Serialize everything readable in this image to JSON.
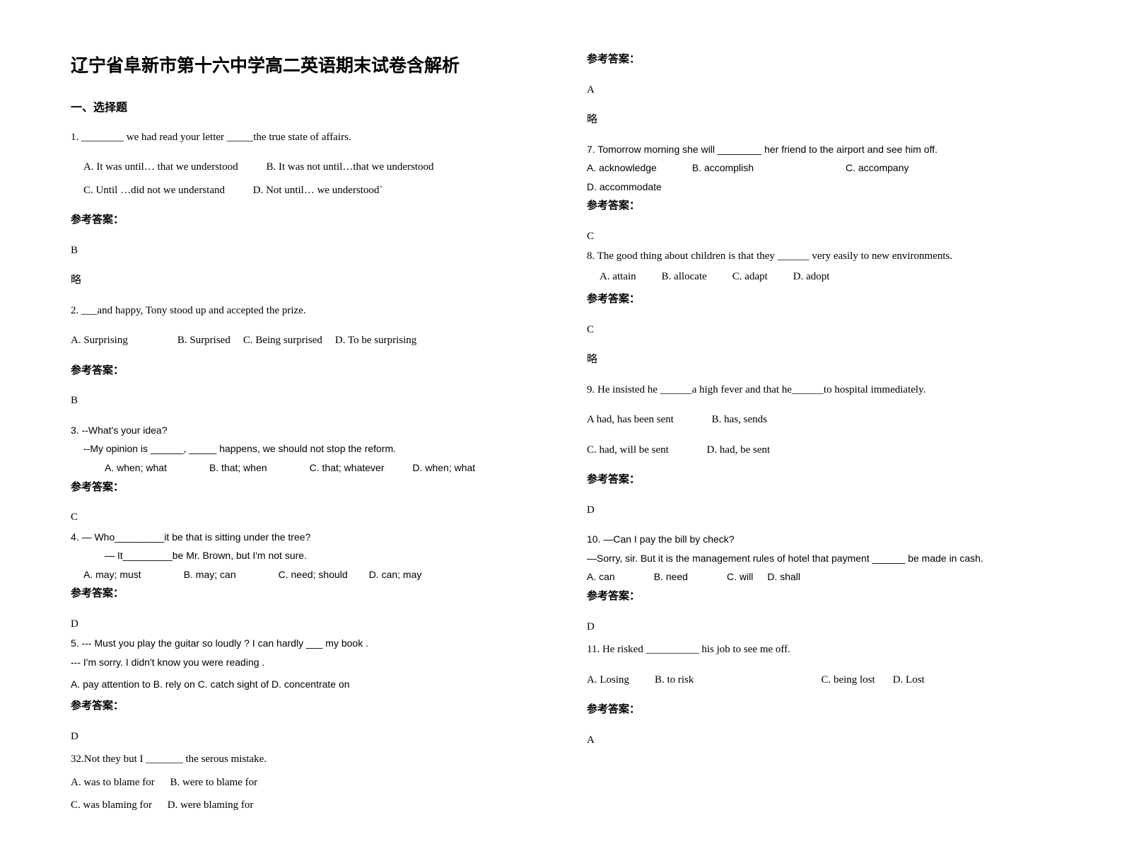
{
  "title": "辽宁省阜新市第十六中学高二英语期末试卷含解析",
  "section1": "一、选择题",
  "ansLabel": "参考答案：",
  "略": "略",
  "q1": {
    "stem": "1. ________ we had read your letter _____the true state of affairs.",
    "a": "A. It was until… that we understood",
    "b": "B. It was not until…that we understood",
    "c": "C. Until …did not we understand",
    "d": "D. Not until… we understood`",
    "ans": "B"
  },
  "q2": {
    "stem": "2. ___and happy, Tony stood up and accepted the prize.",
    "a": "A. Surprising",
    "b": "B. Surprised",
    "c": "C. Being surprised",
    "d": "D. To be surprising",
    "ans": "B"
  },
  "q3": {
    "line1": "3. --What's your idea?",
    "line2": "--My opinion is ______, _____ happens, we should not stop the reform.",
    "a": "A. when; what",
    "b": "B. that; when",
    "c": "C. that; whatever",
    "d": "D. when; what",
    "ans": "C"
  },
  "q4": {
    "line1": "4. — Who_________it be that is sitting under the tree?",
    "line2": "— It_________be Mr. Brown, but I'm not sure.",
    "a": "A. may; must",
    "b": "B. may; can",
    "c": "C. need; should",
    "d": "D. can; may",
    "ans": "D"
  },
  "q5": {
    "line1": "5. --- Must you play the guitar so loudly ? I can hardly ___ my book .",
    "line2": "--- I'm sorry. I didn't know you were reading .",
    "opts": "A. pay attention to   B. rely on   C. catch sight of   D. concentrate on",
    "ans": "D"
  },
  "q6": {
    "stem": "32.Not they but I _______ the serous mistake.",
    "a": "A. was to blame for",
    "b": "B. were to blame for",
    "c": "C. was blaming for",
    "d": "D. were blaming for",
    "ans": "A"
  },
  "q7": {
    "stem": "7. Tomorrow morning she will ________ her friend to the airport and see him off.",
    "a": "A. acknowledge",
    "b": "B. accomplish",
    "c": "C. accompany",
    "d": "D. accommodate",
    "ans": "C"
  },
  "q8": {
    "stem": "8.        The good thing about children is that they ______ very easily to new environments.",
    "a": "A. attain",
    "b": "B. allocate",
    "c": "C. adapt",
    "d": "D. adopt",
    "ans": "C"
  },
  "q9": {
    "stem": "9. He insisted he ______a high fever and that he______to hospital immediately.",
    "a": "A had, has been sent",
    "b": "B. has, sends",
    "c": "C. had, will be sent",
    "d": "D. had, be sent",
    "ans": "D"
  },
  "q10": {
    "line1": "10. —Can I pay the bill by check?",
    "line2": "—Sorry, sir. But it is the management rules of hotel that payment ______ be made in cash.",
    "a": "A. can",
    "b": "B. need",
    "c": "C. will",
    "d": "D. shall",
    "ans": "D"
  },
  "q11": {
    "stem": "11. He risked __________ his job to see me off.",
    "a": "A. Losing",
    "b": "B. to risk",
    "c": "C. being lost",
    "d": "D. Lost",
    "ans": "A"
  }
}
